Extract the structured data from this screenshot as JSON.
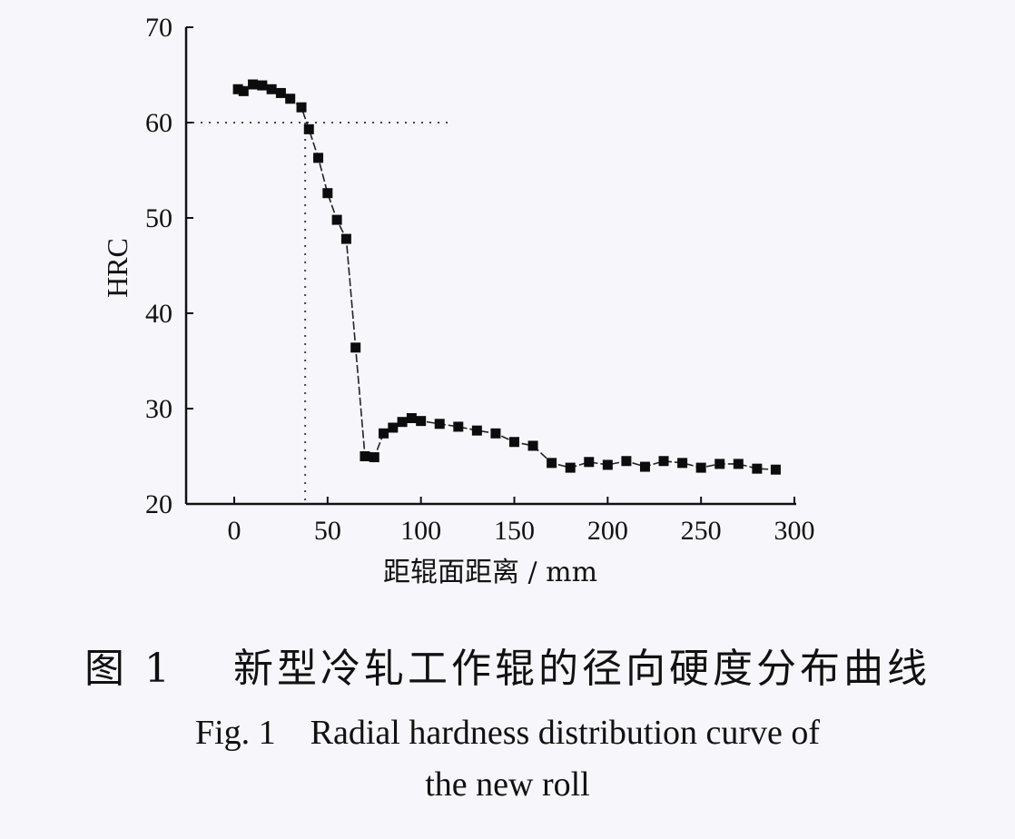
{
  "chart_data": {
    "type": "line",
    "title": "",
    "xlabel": "距辊面距离 / mm",
    "ylabel": "HRC",
    "xlim": [
      -20,
      300
    ],
    "ylim": [
      20,
      70
    ],
    "xticks": [
      0,
      50,
      100,
      150,
      200,
      250,
      300
    ],
    "yticks": [
      20,
      30,
      40,
      50,
      60,
      70
    ],
    "xtick_labels": [
      "0",
      "50",
      "100",
      "150",
      "200",
      "250",
      "300"
    ],
    "ytick_labels": [
      "20",
      "30",
      "40",
      "50",
      "60",
      "70"
    ],
    "grid": false,
    "reference_lines": {
      "hrc": 60,
      "depth_mm": 38
    },
    "series": [
      {
        "name": "HRC",
        "marker": "square",
        "x": [
          2,
          5,
          10,
          15,
          20,
          25,
          30,
          36,
          40,
          45,
          50,
          55,
          60,
          65,
          70,
          75,
          80,
          85,
          90,
          95,
          100,
          110,
          120,
          130,
          140,
          150,
          160,
          170,
          180,
          190,
          200,
          210,
          220,
          230,
          240,
          250,
          260,
          270,
          280,
          290
        ],
        "y": [
          63.5,
          63.3,
          64.0,
          63.9,
          63.5,
          63.1,
          62.5,
          61.6,
          59.3,
          56.3,
          52.6,
          49.8,
          47.8,
          36.4,
          25.0,
          24.9,
          27.4,
          28.0,
          28.6,
          29.0,
          28.7,
          28.4,
          28.1,
          27.7,
          27.4,
          26.5,
          26.1,
          24.3,
          23.8,
          24.4,
          24.1,
          24.5,
          23.9,
          24.5,
          24.3,
          23.8,
          24.2,
          24.2,
          23.7,
          23.6
        ]
      }
    ]
  },
  "caption": {
    "chinese": "图 1　 新型冷轧工作辊的径向硬度分布曲线",
    "english_line1": "Fig. 1　Radial hardness distribution curve of",
    "english_line2": "the new roll"
  }
}
